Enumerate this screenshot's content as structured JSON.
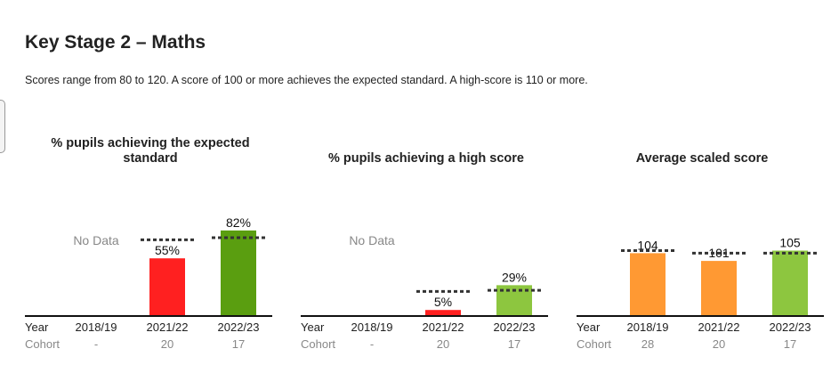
{
  "page": {
    "title": "Key Stage 2 – Maths",
    "subtitle": "Scores range from 80 to 120. A score of 100 or more achieves the expected standard. A high-score is 110 or more."
  },
  "colors": {
    "red": "#ff2020",
    "dark_green": "#5a9e10",
    "light_green": "#8dc63f",
    "orange": "#ff9933",
    "benchmark": "#333333",
    "row_label": "#222222",
    "cohort_text": "#888888",
    "no_data": "#888888"
  },
  "chart_data": [
    {
      "type": "bar",
      "title": "% pupils achieving the expected standard",
      "row_labels": {
        "year": "Year",
        "cohort": "Cohort"
      },
      "categories": [
        "2018/19",
        "2021/22",
        "2022/23"
      ],
      "cohort": [
        "-",
        "20",
        "17"
      ],
      "values": [
        null,
        55,
        82
      ],
      "value_labels": [
        "",
        "55%",
        "82%"
      ],
      "benchmarks": [
        null,
        73,
        75
      ],
      "bar_colors": [
        "",
        "#ff2020",
        "#5a9e10"
      ],
      "no_data_label": "No Data",
      "ylim": [
        0,
        100
      ]
    },
    {
      "type": "bar",
      "title": "% pupils achieving a high score",
      "row_labels": {
        "year": "Year",
        "cohort": "Cohort"
      },
      "categories": [
        "2018/19",
        "2021/22",
        "2022/23"
      ],
      "cohort": [
        "-",
        "20",
        "17"
      ],
      "values": [
        null,
        5,
        29
      ],
      "value_labels": [
        "",
        "5%",
        "29%"
      ],
      "benchmarks": [
        null,
        23,
        24
      ],
      "bar_colors": [
        "",
        "#ff2020",
        "#8dc63f"
      ],
      "no_data_label": "No Data",
      "ylim": [
        0,
        100
      ]
    },
    {
      "type": "bar",
      "title": "Average scaled score",
      "row_labels": {
        "year": "Year",
        "cohort": "Cohort"
      },
      "categories": [
        "2018/19",
        "2021/22",
        "2022/23"
      ],
      "cohort": [
        "28",
        "20",
        "17"
      ],
      "values": [
        104,
        101,
        105
      ],
      "value_labels": [
        "104",
        "101",
        "105"
      ],
      "benchmarks": [
        105,
        104,
        104
      ],
      "bar_colors": [
        "#ff9933",
        "#ff9933",
        "#8dc63f"
      ],
      "no_data_label": "",
      "ylim": [
        80,
        120
      ]
    }
  ]
}
